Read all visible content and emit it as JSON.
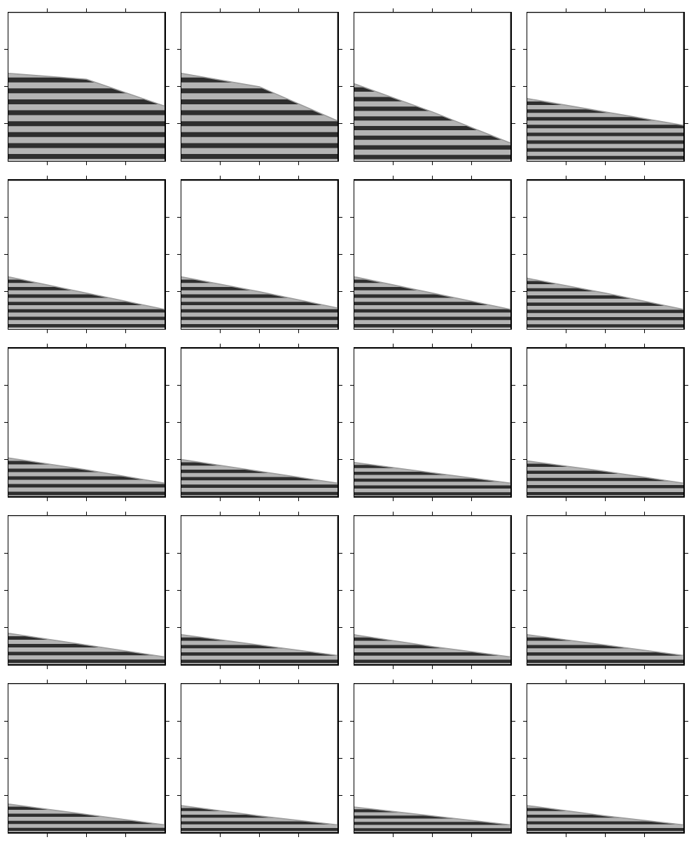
{
  "chart_data": [
    {
      "type": "area",
      "x": [
        0,
        0.5,
        1
      ],
      "values": [
        0.59,
        0.55,
        0.37
      ],
      "bands": 8,
      "color": "#b4b4b4",
      "xlim": [
        0,
        1
      ],
      "ylim": [
        0,
        1
      ],
      "xticks": [
        0.25,
        0.5,
        0.75
      ],
      "yticks": [
        0.25,
        0.5,
        0.75
      ],
      "tick_labels": false
    },
    {
      "type": "area",
      "x": [
        0,
        0.5,
        1
      ],
      "values": [
        0.59,
        0.5,
        0.27
      ],
      "bands": 8,
      "color": "#b4b4b4",
      "xlim": [
        0,
        1
      ],
      "ylim": [
        0,
        1
      ],
      "xticks": [
        0.25,
        0.5,
        0.75
      ],
      "yticks": [
        0.25,
        0.5,
        0.75
      ],
      "tick_labels": false
    },
    {
      "type": "area",
      "x": [
        0,
        0.5,
        1
      ],
      "values": [
        0.52,
        0.33,
        0.12
      ],
      "bands": 8,
      "color": "#b4b4b4",
      "xlim": [
        0,
        1
      ],
      "ylim": [
        0,
        1
      ],
      "xticks": [
        0.25,
        0.5,
        0.75
      ],
      "yticks": [
        0.25,
        0.5,
        0.75
      ],
      "tick_labels": false
    },
    {
      "type": "area",
      "x": [
        0,
        0.5,
        1
      ],
      "values": [
        0.42,
        0.33,
        0.24
      ],
      "bands": 8,
      "color": "#b4b4b4",
      "xlim": [
        0,
        1
      ],
      "ylim": [
        0,
        1
      ],
      "xticks": [
        0.25,
        0.5,
        0.75
      ],
      "yticks": [
        0.25,
        0.5,
        0.75
      ],
      "tick_labels": false
    },
    {
      "type": "area",
      "x": [
        0,
        0.5,
        1
      ],
      "values": [
        0.35,
        0.24,
        0.13
      ],
      "bands": 7,
      "color": "#b4b4b4",
      "xlim": [
        0,
        1
      ],
      "ylim": [
        0,
        1
      ],
      "xticks": [
        0.25,
        0.5,
        0.75
      ],
      "yticks": [
        0.25,
        0.5,
        0.75
      ],
      "tick_labels": false
    },
    {
      "type": "area",
      "x": [
        0,
        0.5,
        1
      ],
      "values": [
        0.35,
        0.25,
        0.14
      ],
      "bands": 7,
      "color": "#b4b4b4",
      "xlim": [
        0,
        1
      ],
      "ylim": [
        0,
        1
      ],
      "xticks": [
        0.25,
        0.5,
        0.75
      ],
      "yticks": [
        0.25,
        0.5,
        0.75
      ],
      "tick_labels": false
    },
    {
      "type": "area",
      "x": [
        0,
        0.5,
        1
      ],
      "values": [
        0.35,
        0.24,
        0.13
      ],
      "bands": 7,
      "color": "#b4b4b4",
      "xlim": [
        0,
        1
      ],
      "ylim": [
        0,
        1
      ],
      "xticks": [
        0.25,
        0.5,
        0.75
      ],
      "yticks": [
        0.25,
        0.5,
        0.75
      ],
      "tick_labels": false
    },
    {
      "type": "area",
      "x": [
        0,
        0.5,
        1
      ],
      "values": [
        0.34,
        0.24,
        0.13
      ],
      "bands": 7,
      "color": "#b4b4b4",
      "xlim": [
        0,
        1
      ],
      "ylim": [
        0,
        1
      ],
      "xticks": [
        0.25,
        0.5,
        0.75
      ],
      "yticks": [
        0.25,
        0.5,
        0.75
      ],
      "tick_labels": false
    },
    {
      "type": "area",
      "x": [
        0,
        0.5,
        1
      ],
      "values": [
        0.26,
        0.18,
        0.09
      ],
      "bands": 5,
      "color": "#b4b4b4",
      "xlim": [
        0,
        1
      ],
      "ylim": [
        0,
        1
      ],
      "xticks": [
        0.25,
        0.5,
        0.75
      ],
      "yticks": [
        0.25,
        0.5,
        0.75
      ],
      "tick_labels": false
    },
    {
      "type": "area",
      "x": [
        0,
        0.5,
        1
      ],
      "values": [
        0.25,
        0.17,
        0.09
      ],
      "bands": 5,
      "color": "#b4b4b4",
      "xlim": [
        0,
        1
      ],
      "ylim": [
        0,
        1
      ],
      "xticks": [
        0.25,
        0.5,
        0.75
      ],
      "yticks": [
        0.25,
        0.5,
        0.75
      ],
      "tick_labels": false
    },
    {
      "type": "area",
      "x": [
        0,
        0.5,
        1
      ],
      "values": [
        0.23,
        0.16,
        0.09
      ],
      "bands": 5,
      "color": "#b4b4b4",
      "xlim": [
        0,
        1
      ],
      "ylim": [
        0,
        1
      ],
      "xticks": [
        0.25,
        0.5,
        0.75
      ],
      "yticks": [
        0.25,
        0.5,
        0.75
      ],
      "tick_labels": false
    },
    {
      "type": "area",
      "x": [
        0,
        0.5,
        1
      ],
      "values": [
        0.24,
        0.17,
        0.09
      ],
      "bands": 5,
      "color": "#b4b4b4",
      "xlim": [
        0,
        1
      ],
      "ylim": [
        0,
        1
      ],
      "xticks": [
        0.25,
        0.5,
        0.75
      ],
      "yticks": [
        0.25,
        0.5,
        0.75
      ],
      "tick_labels": false
    },
    {
      "type": "area",
      "x": [
        0,
        0.5,
        1
      ],
      "values": [
        0.21,
        0.13,
        0.05
      ],
      "bands": 4,
      "color": "#b4b4b4",
      "xlim": [
        0,
        1
      ],
      "ylim": [
        0,
        1
      ],
      "xticks": [
        0.25,
        0.5,
        0.75
      ],
      "yticks": [
        0.25,
        0.5,
        0.75
      ],
      "tick_labels": false
    },
    {
      "type": "area",
      "x": [
        0,
        0.5,
        1
      ],
      "values": [
        0.2,
        0.13,
        0.06
      ],
      "bands": 4,
      "color": "#b4b4b4",
      "xlim": [
        0,
        1
      ],
      "ylim": [
        0,
        1
      ],
      "xticks": [
        0.25,
        0.5,
        0.75
      ],
      "yticks": [
        0.25,
        0.5,
        0.75
      ],
      "tick_labels": false
    },
    {
      "type": "area",
      "x": [
        0,
        0.5,
        1
      ],
      "values": [
        0.2,
        0.12,
        0.05
      ],
      "bands": 4,
      "color": "#b4b4b4",
      "xlim": [
        0,
        1
      ],
      "ylim": [
        0,
        1
      ],
      "xticks": [
        0.25,
        0.5,
        0.75
      ],
      "yticks": [
        0.25,
        0.5,
        0.75
      ],
      "tick_labels": false
    },
    {
      "type": "area",
      "x": [
        0,
        0.5,
        1
      ],
      "values": [
        0.2,
        0.13,
        0.06
      ],
      "bands": 4,
      "color": "#b4b4b4",
      "xlim": [
        0,
        1
      ],
      "ylim": [
        0,
        1
      ],
      "xticks": [
        0.25,
        0.5,
        0.75
      ],
      "yticks": [
        0.25,
        0.5,
        0.75
      ],
      "tick_labels": false
    },
    {
      "type": "area",
      "x": [
        0,
        0.5,
        1
      ],
      "values": [
        0.19,
        0.12,
        0.05
      ],
      "bands": 4,
      "color": "#b4b4b4",
      "xlim": [
        0,
        1
      ],
      "ylim": [
        0,
        1
      ],
      "xticks": [
        0.25,
        0.5,
        0.75
      ],
      "yticks": [
        0.25,
        0.5,
        0.75
      ],
      "tick_labels": false
    },
    {
      "type": "area",
      "x": [
        0,
        0.5,
        1
      ],
      "values": [
        0.18,
        0.11,
        0.05
      ],
      "bands": 4,
      "color": "#b4b4b4",
      "xlim": [
        0,
        1
      ],
      "ylim": [
        0,
        1
      ],
      "xticks": [
        0.25,
        0.5,
        0.75
      ],
      "yticks": [
        0.25,
        0.5,
        0.75
      ],
      "tick_labels": false
    },
    {
      "type": "area",
      "x": [
        0,
        0.5,
        1
      ],
      "values": [
        0.17,
        0.11,
        0.05
      ],
      "bands": 4,
      "color": "#b4b4b4",
      "xlim": [
        0,
        1
      ],
      "ylim": [
        0,
        1
      ],
      "xticks": [
        0.25,
        0.5,
        0.75
      ],
      "yticks": [
        0.25,
        0.5,
        0.75
      ],
      "tick_labels": false
    },
    {
      "type": "area",
      "x": [
        0,
        0.5,
        1
      ],
      "values": [
        0.18,
        0.11,
        0.05
      ],
      "bands": 4,
      "color": "#b4b4b4",
      "xlim": [
        0,
        1
      ],
      "ylim": [
        0,
        1
      ],
      "xticks": [
        0.25,
        0.5,
        0.75
      ],
      "yticks": [
        0.25,
        0.5,
        0.75
      ],
      "tick_labels": false
    }
  ]
}
